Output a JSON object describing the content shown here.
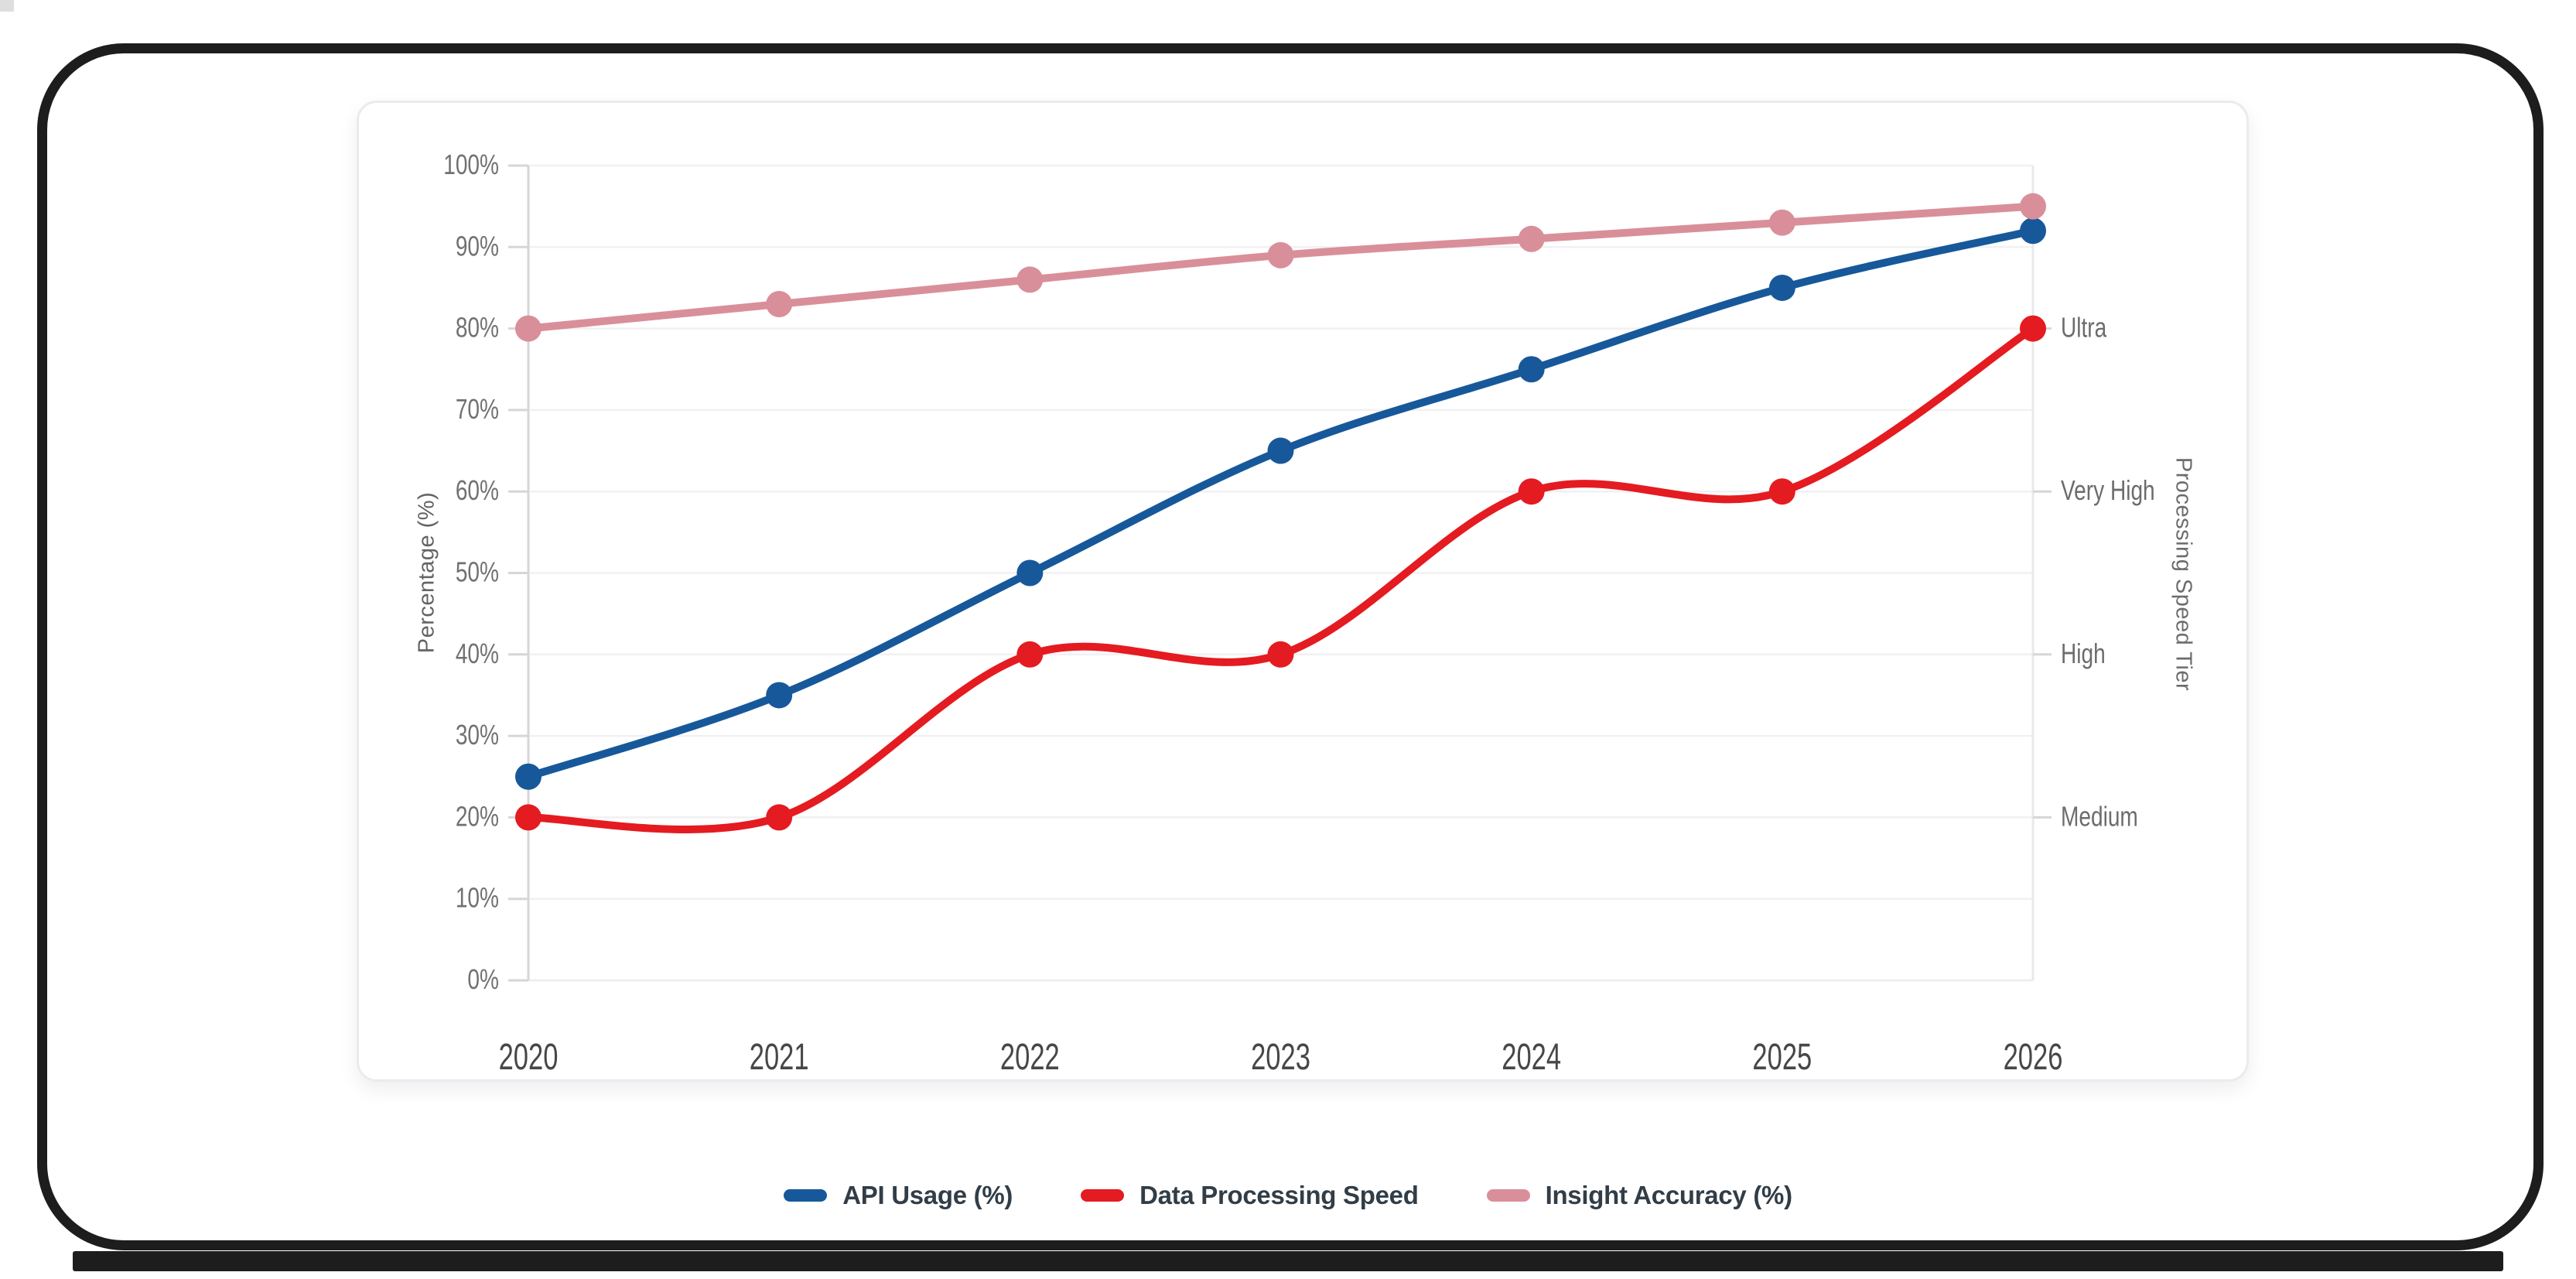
{
  "chart_data": {
    "type": "line",
    "categories": [
      "2020",
      "2021",
      "2022",
      "2023",
      "2024",
      "2025",
      "2026"
    ],
    "series": [
      {
        "name": "API Usage (%)",
        "color": "#17589a",
        "axis": "left",
        "values": [
          25,
          35,
          50,
          65,
          75,
          85,
          92
        ]
      },
      {
        "name": "Data Processing Speed",
        "color": "#e41b20",
        "axis": "right",
        "values": [
          20,
          20,
          40,
          40,
          60,
          60,
          80
        ]
      },
      {
        "name": "Insight Accuracy (%)",
        "color": "#d98f99",
        "axis": "left",
        "values": [
          80,
          83,
          86,
          89,
          91,
          93,
          95
        ]
      }
    ],
    "ylabel_left": "Percentage (%)",
    "ylabel_right": "Processing Speed Tier",
    "yticks_left": [
      "0%",
      "10%",
      "20%",
      "30%",
      "40%",
      "50%",
      "60%",
      "70%",
      "80%",
      "90%",
      "100%"
    ],
    "right_axis_tiers": [
      {
        "label": "Medium",
        "value": 20
      },
      {
        "label": "High",
        "value": 40
      },
      {
        "label": "Very High",
        "value": 60
      },
      {
        "label": "Ultra",
        "value": 80
      }
    ],
    "ylim": [
      0,
      100
    ],
    "grid": "horizontal",
    "legend_position": "bottom",
    "smoothing": "catmull-rom"
  },
  "frame": {
    "border_color": "#1d1d1d",
    "card_border_color": "#ebebed"
  }
}
